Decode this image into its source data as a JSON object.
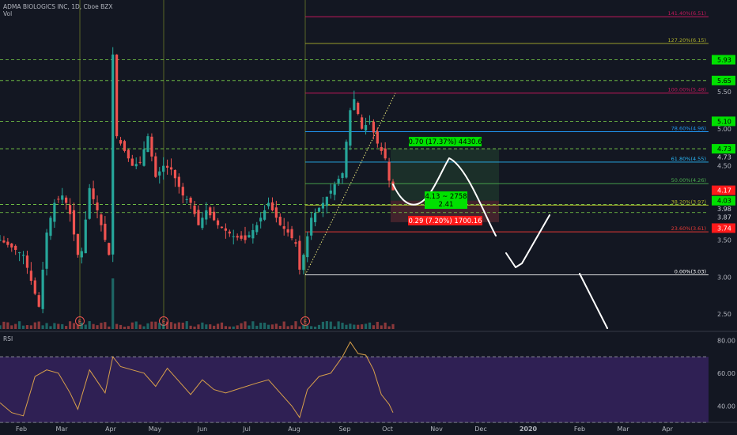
{
  "header": {
    "title": "ADMA BIOLOGICS INC, 1D, Cboe BZX",
    "volume_label": "Vol",
    "rsi_label": "RSI"
  },
  "colors": {
    "background": "#131722",
    "up": "#26a69a",
    "down": "#ef5350",
    "rsi_line": "#d8a04a",
    "rsi_band": "#3a2466",
    "green_badge": "#00e000",
    "red_badge": "#ff1a1a",
    "fib_100": "#c2185b",
    "fib_786": "#2196f3",
    "fib_618": "#29b6f6",
    "fib_50": "#4caf50",
    "fib_382": "#aeb02c",
    "fib_236": "#e53935",
    "fib_0": "#ffffff"
  },
  "chart_data": {
    "type": "candlestick",
    "x_ticks": [
      "Feb",
      "Mar",
      "Apr",
      "May",
      "Jun",
      "Jul",
      "Aug",
      "Sep",
      "Oct",
      "Nov",
      "Dec",
      "2020",
      "Feb",
      "Mar",
      "Apr"
    ],
    "price_axis": {
      "ticks": [
        "5.50",
        "5.00",
        "4.50",
        "3.50",
        "3.00",
        "2.50"
      ],
      "ylim": [
        2.3,
        6.65
      ]
    },
    "rsi_axis": {
      "ticks": [
        "80.00",
        "60.00",
        "40.00"
      ],
      "ylim": [
        32,
        84
      ],
      "overbought": 70,
      "oversold": 30
    },
    "price_path": [
      [
        0,
        3.5
      ],
      [
        6,
        3.3
      ],
      [
        10,
        2.6
      ],
      [
        12,
        3.6
      ],
      [
        14,
        4.0
      ],
      [
        16,
        4.1
      ],
      [
        17,
        4.0
      ],
      [
        18,
        3.85
      ],
      [
        20,
        3.3
      ],
      [
        21,
        3.35
      ],
      [
        23,
        4.2
      ],
      [
        25,
        3.9
      ],
      [
        27,
        3.5
      ],
      [
        28,
        3.3
      ],
      [
        29,
        6.0
      ],
      [
        30,
        4.9
      ],
      [
        32,
        4.7
      ],
      [
        34,
        4.5
      ],
      [
        36,
        4.55
      ],
      [
        38,
        4.9
      ],
      [
        40,
        4.35
      ],
      [
        42,
        4.5
      ],
      [
        44,
        4.45
      ],
      [
        47,
        4.1
      ],
      [
        49,
        4.0
      ],
      [
        51,
        3.7
      ],
      [
        53,
        3.9
      ],
      [
        56,
        3.7
      ],
      [
        60,
        3.55
      ],
      [
        63,
        3.5
      ],
      [
        66,
        3.7
      ],
      [
        69,
        4.0
      ],
      [
        72,
        3.7
      ],
      [
        74,
        3.6
      ],
      [
        76,
        3.45
      ],
      [
        77,
        3.1
      ],
      [
        78,
        3.3
      ],
      [
        80,
        3.8
      ],
      [
        83,
        4.0
      ],
      [
        86,
        4.25
      ],
      [
        88,
        4.4
      ],
      [
        90,
        5.25
      ],
      [
        91,
        5.4
      ],
      [
        93,
        5.0
      ],
      [
        95,
        5.1
      ],
      [
        97,
        4.8
      ],
      [
        99,
        4.6
      ],
      [
        100,
        4.3
      ],
      [
        101,
        4.17
      ]
    ],
    "rsi_path": [
      [
        0,
        42
      ],
      [
        3,
        36
      ],
      [
        6,
        34
      ],
      [
        9,
        58
      ],
      [
        12,
        62
      ],
      [
        15,
        60
      ],
      [
        18,
        48
      ],
      [
        20,
        38
      ],
      [
        23,
        62
      ],
      [
        25,
        55
      ],
      [
        27,
        48
      ],
      [
        29,
        70
      ],
      [
        31,
        64
      ],
      [
        34,
        62
      ],
      [
        37,
        60
      ],
      [
        40,
        52
      ],
      [
        43,
        63
      ],
      [
        46,
        55
      ],
      [
        49,
        47
      ],
      [
        52,
        56
      ],
      [
        55,
        50
      ],
      [
        58,
        48
      ],
      [
        62,
        51
      ],
      [
        66,
        54
      ],
      [
        69,
        56
      ],
      [
        72,
        48
      ],
      [
        75,
        40
      ],
      [
        77,
        33
      ],
      [
        79,
        50
      ],
      [
        82,
        58
      ],
      [
        85,
        60
      ],
      [
        88,
        70
      ],
      [
        90,
        79
      ],
      [
        92,
        72
      ],
      [
        94,
        71
      ],
      [
        96,
        62
      ],
      [
        98,
        47
      ],
      [
        100,
        41
      ],
      [
        101,
        36
      ]
    ],
    "fib_levels": [
      {
        "label": "141.40%(6.51)",
        "price": 6.51,
        "color": "#c2185b"
      },
      {
        "label": "127.20%(6.15)",
        "price": 6.15,
        "color": "#aeb02c"
      },
      {
        "label": "100.00%(5.48)",
        "price": 5.48,
        "color": "#c2185b"
      },
      {
        "label": "78.60%(4.96)",
        "price": 4.96,
        "color": "#2196f3"
      },
      {
        "label": "61.80%(4.55)",
        "price": 4.55,
        "color": "#29b6f6"
      },
      {
        "label": "50.00%(4.26)",
        "price": 4.26,
        "color": "#4caf50"
      },
      {
        "label": "38.20%(3.97)",
        "price": 3.97,
        "color": "#aeb02c"
      },
      {
        "label": "23.60%(3.61)",
        "price": 3.61,
        "color": "#e53935"
      },
      {
        "label": "0.00%(3.03)",
        "price": 3.03,
        "color": "#ffffff"
      }
    ],
    "horizontal_levels": [
      5.93,
      5.65,
      5.1,
      4.73,
      3.98,
      3.87
    ],
    "price_badges": [
      {
        "text": "5.93",
        "price": 5.93,
        "style": "green"
      },
      {
        "text": "5.65",
        "price": 5.65,
        "style": "green"
      },
      {
        "text": "5.10",
        "price": 5.1,
        "style": "green"
      },
      {
        "text": "4.73",
        "price": 4.73,
        "style": "green"
      },
      {
        "text": "4.73",
        "price": 4.62,
        "style": "plain"
      },
      {
        "text": "4.17",
        "price": 4.17,
        "style": "red"
      },
      {
        "text": "4.03",
        "price": 4.03,
        "style": "green"
      },
      {
        "text": "3.98",
        "price": 3.92,
        "style": "plain"
      },
      {
        "text": "3.87",
        "price": 3.81,
        "style": "plain"
      },
      {
        "text": "3.74",
        "price": 3.66,
        "style": "red"
      }
    ],
    "position": {
      "target_text": "0.70 (17.37%) 4430.6",
      "stop_text": "0.29 (7.20%) 1700.16",
      "center_line1": "4.13 ~ 2758",
      "center_line2": "2.41",
      "entry": 4.03,
      "target": 4.73,
      "stop": 3.74
    },
    "earnings_marker": "E"
  }
}
